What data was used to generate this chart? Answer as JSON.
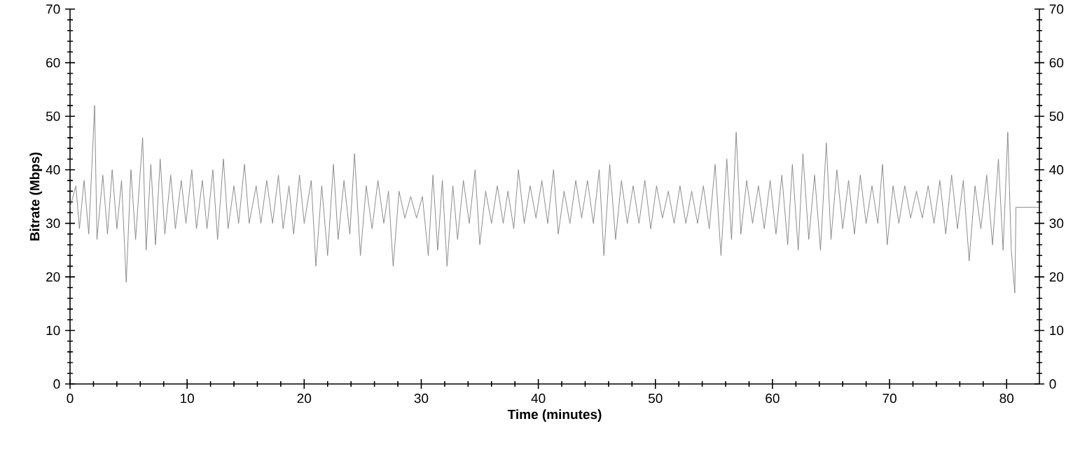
{
  "chart_data": {
    "type": "line",
    "xlabel": "Time (minutes)",
    "ylabel": "Bitrate (Mbps)",
    "xlim": [
      0,
      82.8
    ],
    "xticks": [
      0,
      10,
      20,
      30,
      40,
      50,
      60,
      70,
      80
    ],
    "ylim": [
      0,
      70
    ],
    "yticks": [
      0,
      10,
      20,
      30,
      40,
      50,
      60,
      70
    ],
    "y2lim": [
      0,
      70
    ],
    "y2ticks": [
      0,
      10,
      20,
      30,
      40,
      50,
      60,
      70
    ],
    "grid": false,
    "marker": "none",
    "line_style": "solid",
    "series": [
      {
        "color": "#808080",
        "x": [
          0,
          0.5,
          0.8,
          1.2,
          1.6,
          2.1,
          2.3,
          2.8,
          3.2,
          3.6,
          4.0,
          4.4,
          4.8,
          5.2,
          5.6,
          6.2,
          6.5,
          6.9,
          7.3,
          7.7,
          8.1,
          8.6,
          9.0,
          9.5,
          9.9,
          10.4,
          10.8,
          11.3,
          11.7,
          12.2,
          12.6,
          13.1,
          13.5,
          14.0,
          14.4,
          14.9,
          15.3,
          15.9,
          16.3,
          16.8,
          17.3,
          17.8,
          18.2,
          18.7,
          19.1,
          19.6,
          20.0,
          20.6,
          21.0,
          21.5,
          22.0,
          22.5,
          22.9,
          23.4,
          23.9,
          24.3,
          24.8,
          25.3,
          25.8,
          26.3,
          26.8,
          27.2,
          27.6,
          28.1,
          28.6,
          29.1,
          29.6,
          30.1,
          30.6,
          31.0,
          31.4,
          31.8,
          32.2,
          32.7,
          33.1,
          33.6,
          34.1,
          34.6,
          35.0,
          35.5,
          36.0,
          36.5,
          37.0,
          37.4,
          37.9,
          38.3,
          38.8,
          39.3,
          39.8,
          40.3,
          40.8,
          41.3,
          41.7,
          42.2,
          42.7,
          43.2,
          43.7,
          44.2,
          44.7,
          45.2,
          45.6,
          46.1,
          46.6,
          47.1,
          47.6,
          48.1,
          48.6,
          49.1,
          49.6,
          50.1,
          50.6,
          51.1,
          51.6,
          52.1,
          52.6,
          53.1,
          53.6,
          54.1,
          54.6,
          55.1,
          55.6,
          56.1,
          56.5,
          56.9,
          57.3,
          57.8,
          58.3,
          58.8,
          59.3,
          59.8,
          60.3,
          60.8,
          61.3,
          61.7,
          62.2,
          62.6,
          63.1,
          63.6,
          64.1,
          64.6,
          65.0,
          65.5,
          66.0,
          66.5,
          67.0,
          67.5,
          68.0,
          68.5,
          69.0,
          69.4,
          69.8,
          70.3,
          70.8,
          71.3,
          71.8,
          72.3,
          72.8,
          73.3,
          73.8,
          74.3,
          74.8,
          75.3,
          75.8,
          76.3,
          76.8,
          77.3,
          77.8,
          78.3,
          78.8,
          79.3,
          79.7,
          80.1,
          80.4,
          80.7,
          80.8,
          82.8
        ],
        "values": [
          33,
          37,
          29,
          38,
          28,
          52,
          27,
          39,
          28,
          40,
          29,
          38,
          19,
          40,
          27,
          46,
          25,
          41,
          26,
          42,
          28,
          39,
          29,
          38,
          30,
          40,
          29,
          38,
          29,
          40,
          27,
          42,
          29,
          37,
          30,
          41,
          30,
          37,
          30,
          38,
          30,
          39,
          29,
          37,
          28,
          39,
          30,
          38,
          22,
          37,
          24,
          41,
          27,
          38,
          28,
          43,
          24,
          37,
          29,
          38,
          30,
          36,
          22,
          36,
          31,
          35,
          31,
          35,
          24,
          39,
          25,
          38,
          22,
          37,
          27,
          38,
          30,
          40,
          26,
          36,
          30,
          37,
          30,
          36,
          29,
          40,
          30,
          37,
          31,
          38,
          30,
          40,
          28,
          36,
          30,
          38,
          31,
          38,
          30,
          40,
          24,
          41,
          27,
          38,
          30,
          37,
          30,
          38,
          29,
          37,
          31,
          36,
          30,
          37,
          30,
          36,
          30,
          37,
          29,
          41,
          24,
          42,
          27,
          47,
          28,
          38,
          30,
          37,
          29,
          38,
          28,
          39,
          26,
          41,
          25,
          43,
          27,
          39,
          25,
          45,
          27,
          40,
          29,
          38,
          28,
          39,
          30,
          37,
          30,
          41,
          26,
          37,
          30,
          37,
          31,
          36,
          31,
          37,
          30,
          38,
          28,
          39,
          29,
          38,
          23,
          37,
          29,
          39,
          26,
          42,
          25,
          47,
          25,
          17,
          33,
          33
        ]
      }
    ]
  }
}
